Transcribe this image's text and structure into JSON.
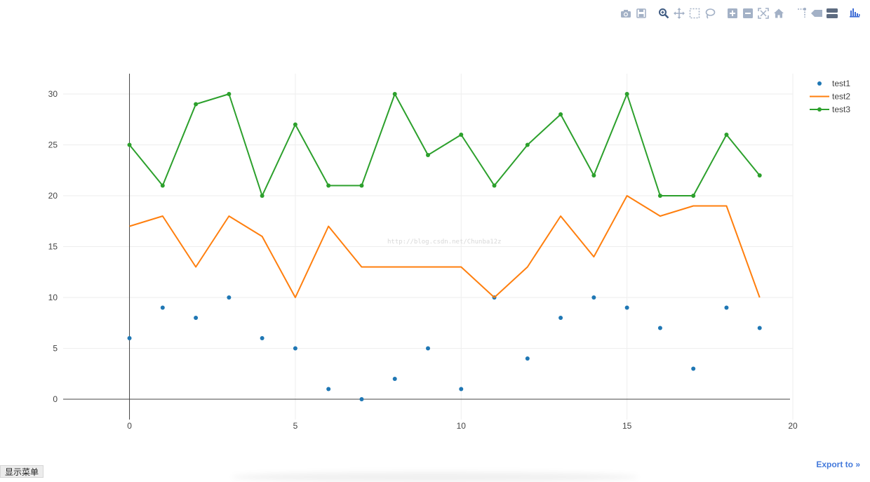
{
  "modebar": {
    "groups": [
      [
        "camera-icon",
        "save-icon"
      ],
      [
        "zoom-icon",
        "pan-icon",
        "box-select-icon",
        "lasso-select-icon"
      ],
      [
        "zoom-in-icon",
        "zoom-out-icon",
        "autoscale-icon",
        "reset-axes-icon"
      ],
      [
        "spike-lines-icon",
        "hover-closest-icon",
        "hover-compare-icon"
      ],
      [
        "plotly-logo-icon"
      ]
    ],
    "icon_color": "#a3b1c6",
    "logo_color": "#3d6cd6"
  },
  "chart_data": {
    "type": "line",
    "x": [
      0,
      1,
      2,
      3,
      4,
      5,
      6,
      7,
      8,
      9,
      10,
      11,
      12,
      13,
      14,
      15,
      16,
      17,
      18,
      19
    ],
    "xlim": [
      -2,
      20
    ],
    "ylim": [
      -2,
      32
    ],
    "x_ticks": [
      0,
      5,
      10,
      15,
      20
    ],
    "y_ticks": [
      0,
      5,
      10,
      15,
      20,
      25,
      30
    ],
    "grid": true,
    "legend_position": "top-right",
    "series": [
      {
        "name": "test1",
        "mode": "markers",
        "color": "#1f77b4",
        "values": [
          6,
          9,
          8,
          10,
          6,
          5,
          1,
          0,
          2,
          5,
          1,
          10,
          4,
          8,
          10,
          9,
          7,
          3,
          9,
          7
        ]
      },
      {
        "name": "test2",
        "mode": "lines",
        "color": "#ff7f0e",
        "values": [
          17,
          18,
          13,
          18,
          16,
          10,
          17,
          13,
          13,
          13,
          13,
          10,
          13,
          18,
          14,
          20,
          18,
          19,
          19,
          10
        ]
      },
      {
        "name": "test3",
        "mode": "lines+markers",
        "color": "#2ca02c",
        "values": [
          25,
          21,
          29,
          30,
          20,
          27,
          21,
          21,
          30,
          24,
          26,
          21,
          25,
          28,
          22,
          30,
          20,
          20,
          26,
          22
        ]
      }
    ]
  },
  "watermark": "http://blog.csdn.net/Chunba12z",
  "menu_button_label": "显示菜单",
  "export_label": "Export to »"
}
